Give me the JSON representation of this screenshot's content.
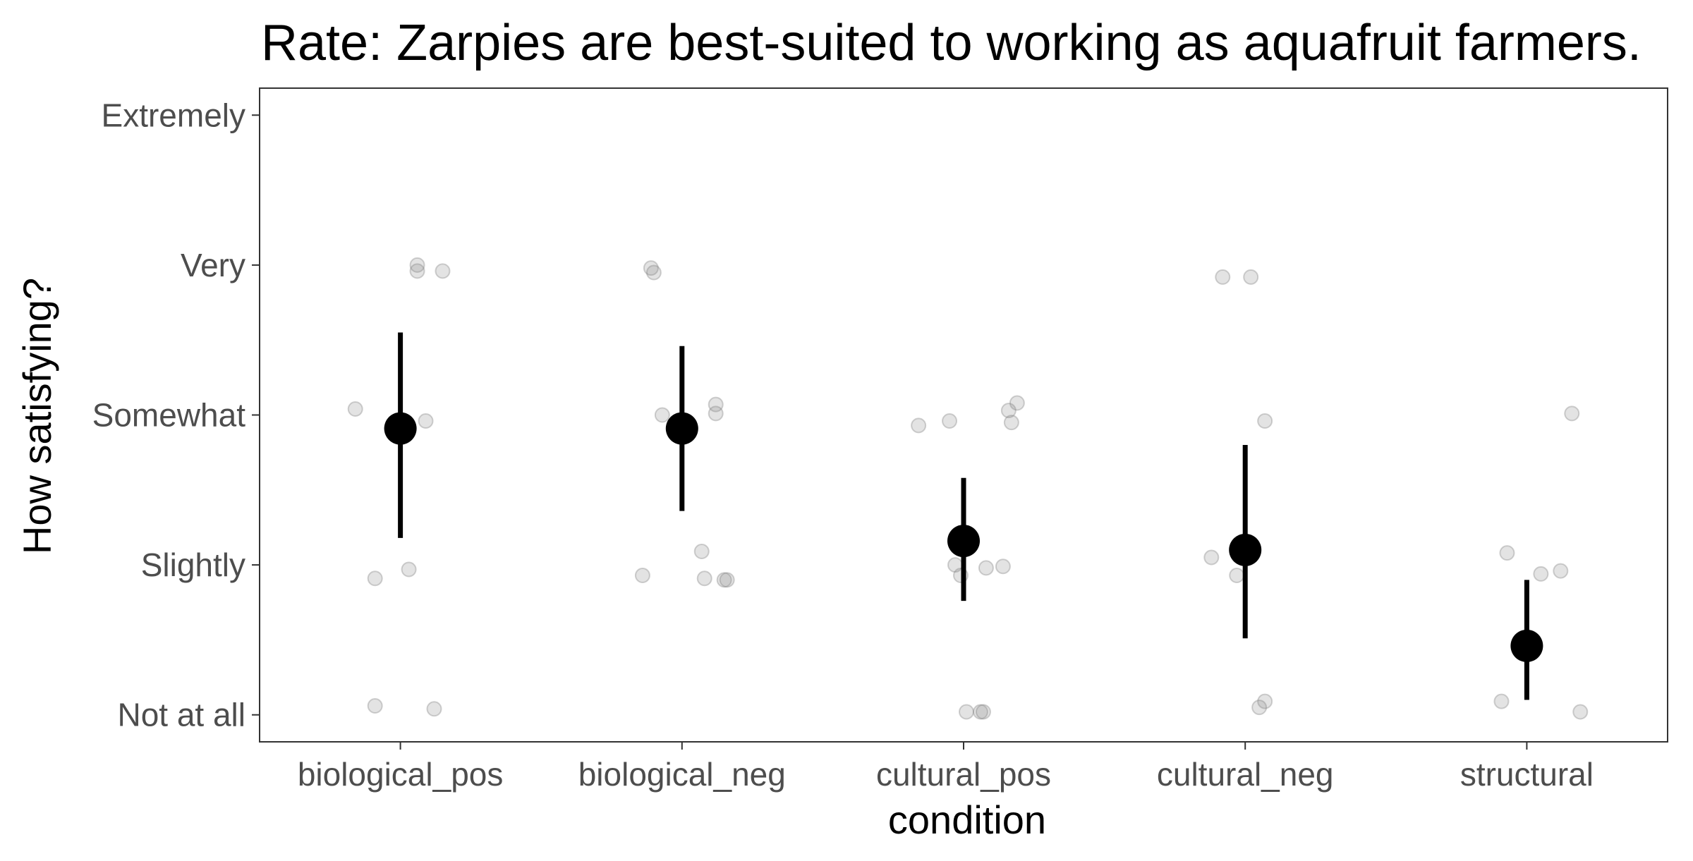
{
  "chart_data": {
    "type": "scatter",
    "title": "Rate: Zarpies are best-suited to working as aquafruit farmers.",
    "xlabel": "condition",
    "ylabel": "How satisfying?",
    "categories": [
      "biological_pos",
      "biological_neg",
      "cultural_pos",
      "cultural_neg",
      "structural"
    ],
    "y_ticks": [
      {
        "value": 1,
        "label": "Not at all"
      },
      {
        "value": 2,
        "label": "Slightly"
      },
      {
        "value": 3,
        "label": "Somewhat"
      },
      {
        "value": 4,
        "label": "Very"
      },
      {
        "value": 5,
        "label": "Extremely"
      }
    ],
    "ylim": [
      0.82,
      5.18
    ],
    "grid": false,
    "summary": [
      {
        "category": "biological_pos",
        "mean": 2.91,
        "ci_low": 2.18,
        "ci_high": 3.55
      },
      {
        "category": "biological_neg",
        "mean": 2.91,
        "ci_low": 2.36,
        "ci_high": 3.46
      },
      {
        "category": "cultural_pos",
        "mean": 2.16,
        "ci_low": 1.76,
        "ci_high": 2.58
      },
      {
        "category": "cultural_neg",
        "mean": 2.1,
        "ci_low": 1.51,
        "ci_high": 2.8
      },
      {
        "category": "structural",
        "mean": 1.46,
        "ci_low": 1.1,
        "ci_high": 1.9
      }
    ],
    "points": [
      {
        "x": -0.16,
        "y": 3.04,
        "cat": 0
      },
      {
        "x": -0.09,
        "y": 1.91,
        "cat": 0
      },
      {
        "x": 0.03,
        "y": 1.97,
        "cat": 0
      },
      {
        "x": 0.06,
        "y": 4.0,
        "cat": 0
      },
      {
        "x": 0.06,
        "y": 3.96,
        "cat": 0
      },
      {
        "x": 0.09,
        "y": 2.96,
        "cat": 0
      },
      {
        "x": 0.15,
        "y": 3.96,
        "cat": 0
      },
      {
        "x": -0.09,
        "y": 1.06,
        "cat": 0
      },
      {
        "x": 0.12,
        "y": 1.04,
        "cat": 0
      },
      {
        "x": -0.14,
        "y": 1.93,
        "cat": 1
      },
      {
        "x": -0.11,
        "y": 3.98,
        "cat": 1
      },
      {
        "x": -0.1,
        "y": 3.95,
        "cat": 1
      },
      {
        "x": -0.07,
        "y": 3.0,
        "cat": 1
      },
      {
        "x": 0.07,
        "y": 2.09,
        "cat": 1
      },
      {
        "x": 0.08,
        "y": 1.91,
        "cat": 1
      },
      {
        "x": 0.12,
        "y": 3.07,
        "cat": 1
      },
      {
        "x": 0.12,
        "y": 3.01,
        "cat": 1
      },
      {
        "x": 0.15,
        "y": 1.9,
        "cat": 1
      },
      {
        "x": 0.16,
        "y": 1.9,
        "cat": 1
      },
      {
        "x": -0.16,
        "y": 2.93,
        "cat": 2
      },
      {
        "x": -0.05,
        "y": 2.96,
        "cat": 2
      },
      {
        "x": -0.03,
        "y": 2.0,
        "cat": 2
      },
      {
        "x": -0.01,
        "y": 1.93,
        "cat": 2
      },
      {
        "x": 0.01,
        "y": 1.02,
        "cat": 2
      },
      {
        "x": 0.06,
        "y": 1.02,
        "cat": 2
      },
      {
        "x": 0.07,
        "y": 1.02,
        "cat": 2
      },
      {
        "x": 0.08,
        "y": 1.98,
        "cat": 2
      },
      {
        "x": 0.14,
        "y": 1.99,
        "cat": 2
      },
      {
        "x": 0.16,
        "y": 3.03,
        "cat": 2
      },
      {
        "x": 0.17,
        "y": 2.95,
        "cat": 2
      },
      {
        "x": 0.19,
        "y": 3.08,
        "cat": 2
      },
      {
        "x": -0.12,
        "y": 2.05,
        "cat": 3
      },
      {
        "x": -0.03,
        "y": 1.93,
        "cat": 3
      },
      {
        "x": -0.08,
        "y": 3.92,
        "cat": 3
      },
      {
        "x": 0.02,
        "y": 3.92,
        "cat": 3
      },
      {
        "x": 0.05,
        "y": 1.05,
        "cat": 3
      },
      {
        "x": 0.07,
        "y": 1.09,
        "cat": 3
      },
      {
        "x": 0.07,
        "y": 2.96,
        "cat": 3
      },
      {
        "x": -0.09,
        "y": 1.09,
        "cat": 4
      },
      {
        "x": -0.07,
        "y": 2.08,
        "cat": 4
      },
      {
        "x": 0.05,
        "y": 1.94,
        "cat": 4
      },
      {
        "x": 0.12,
        "y": 1.96,
        "cat": 4
      },
      {
        "x": 0.16,
        "y": 3.01,
        "cat": 4
      },
      {
        "x": 0.19,
        "y": 1.02,
        "cat": 4
      }
    ]
  }
}
